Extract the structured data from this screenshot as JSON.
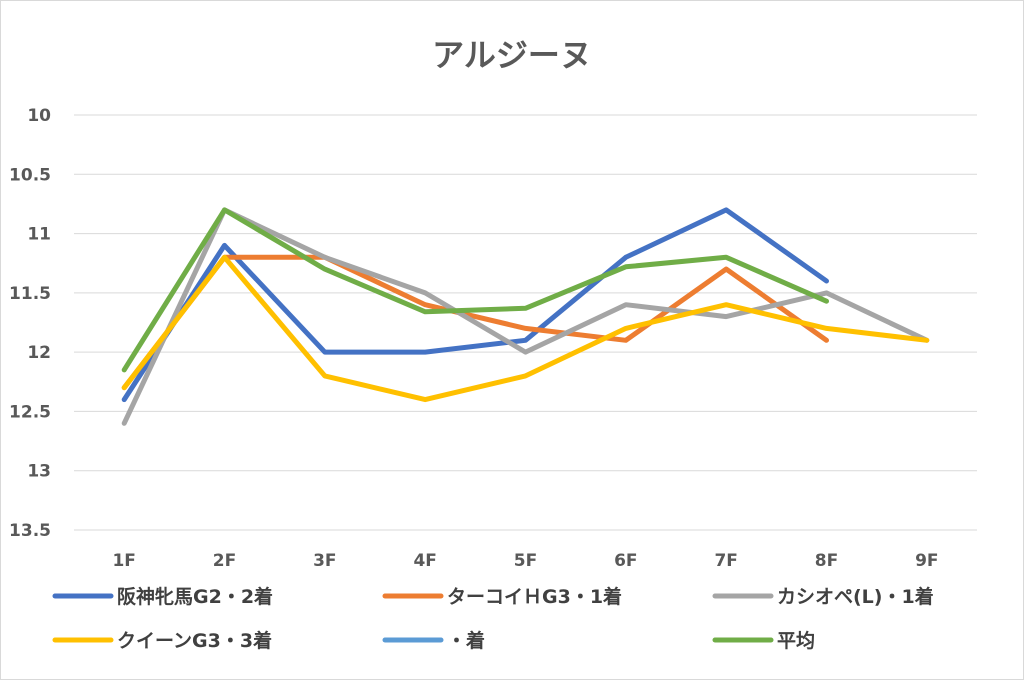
{
  "chart_data": {
    "type": "line",
    "title": "アルジーヌ",
    "categories": [
      "1F",
      "2F",
      "3F",
      "4F",
      "5F",
      "6F",
      "7F",
      "8F",
      "9F"
    ],
    "y_axis": {
      "min": 10,
      "max": 13.5,
      "step": 0.5,
      "reversed": true,
      "tick_labels": [
        "10",
        "10.5",
        "11",
        "11.5",
        "12",
        "12.5",
        "13",
        "13.5"
      ]
    },
    "grid": true,
    "legend_position": "bottom",
    "series": [
      {
        "name": "阪神牝馬G2・2着",
        "color": "#4472C4",
        "values": [
          12.4,
          11.1,
          12.0,
          12.0,
          11.9,
          11.2,
          10.8,
          11.4,
          null
        ]
      },
      {
        "name": "ターコイＨG3・1着",
        "color": "#ED7D31",
        "values": [
          12.3,
          11.2,
          11.2,
          11.6,
          11.8,
          11.9,
          11.3,
          11.9,
          null
        ]
      },
      {
        "name": "カシオペ(L)・1着",
        "color": "#A5A5A5",
        "values": [
          12.6,
          10.8,
          11.2,
          11.5,
          12.0,
          11.6,
          11.7,
          11.5,
          11.9
        ]
      },
      {
        "name": "クイーンG3・3着",
        "color": "#FFC000",
        "values": [
          12.3,
          11.2,
          12.2,
          12.4,
          12.2,
          11.8,
          11.6,
          11.8,
          11.9
        ]
      },
      {
        "name": "・着",
        "color": "#5B9BD5",
        "values": [
          null,
          null,
          null,
          null,
          null,
          null,
          null,
          null,
          null
        ]
      },
      {
        "name": "平均",
        "color": "#70AD47",
        "values": [
          12.15,
          10.8,
          11.3,
          11.66,
          11.63,
          11.28,
          11.2,
          11.57,
          null
        ]
      }
    ]
  }
}
